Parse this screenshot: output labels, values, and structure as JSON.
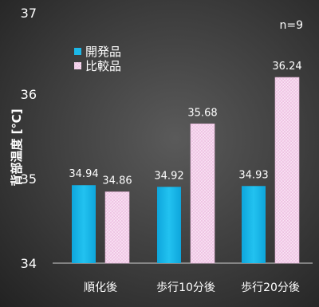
{
  "chart_data": {
    "type": "bar",
    "title": "",
    "xlabel": "",
    "ylabel": "背部温度 [℃]",
    "categories": [
      "順化後",
      "歩行10分後",
      "歩行20分後"
    ],
    "series": [
      {
        "name": "開発品",
        "values": [
          34.94,
          34.92,
          34.93
        ],
        "color": "#1cb8e8"
      },
      {
        "name": "比較品",
        "values": [
          34.86,
          35.68,
          36.24
        ],
        "color": "#f2c8e6"
      }
    ],
    "value_labels": [
      [
        "34.94",
        "34.92",
        "34.93"
      ],
      [
        "34.86",
        "35.68",
        "36.24"
      ]
    ],
    "ylim": [
      34,
      37
    ],
    "yticks": [
      "34",
      "35",
      "36",
      "37"
    ],
    "annotation": "n=9",
    "legend_position": "top-left",
    "grid": false
  }
}
